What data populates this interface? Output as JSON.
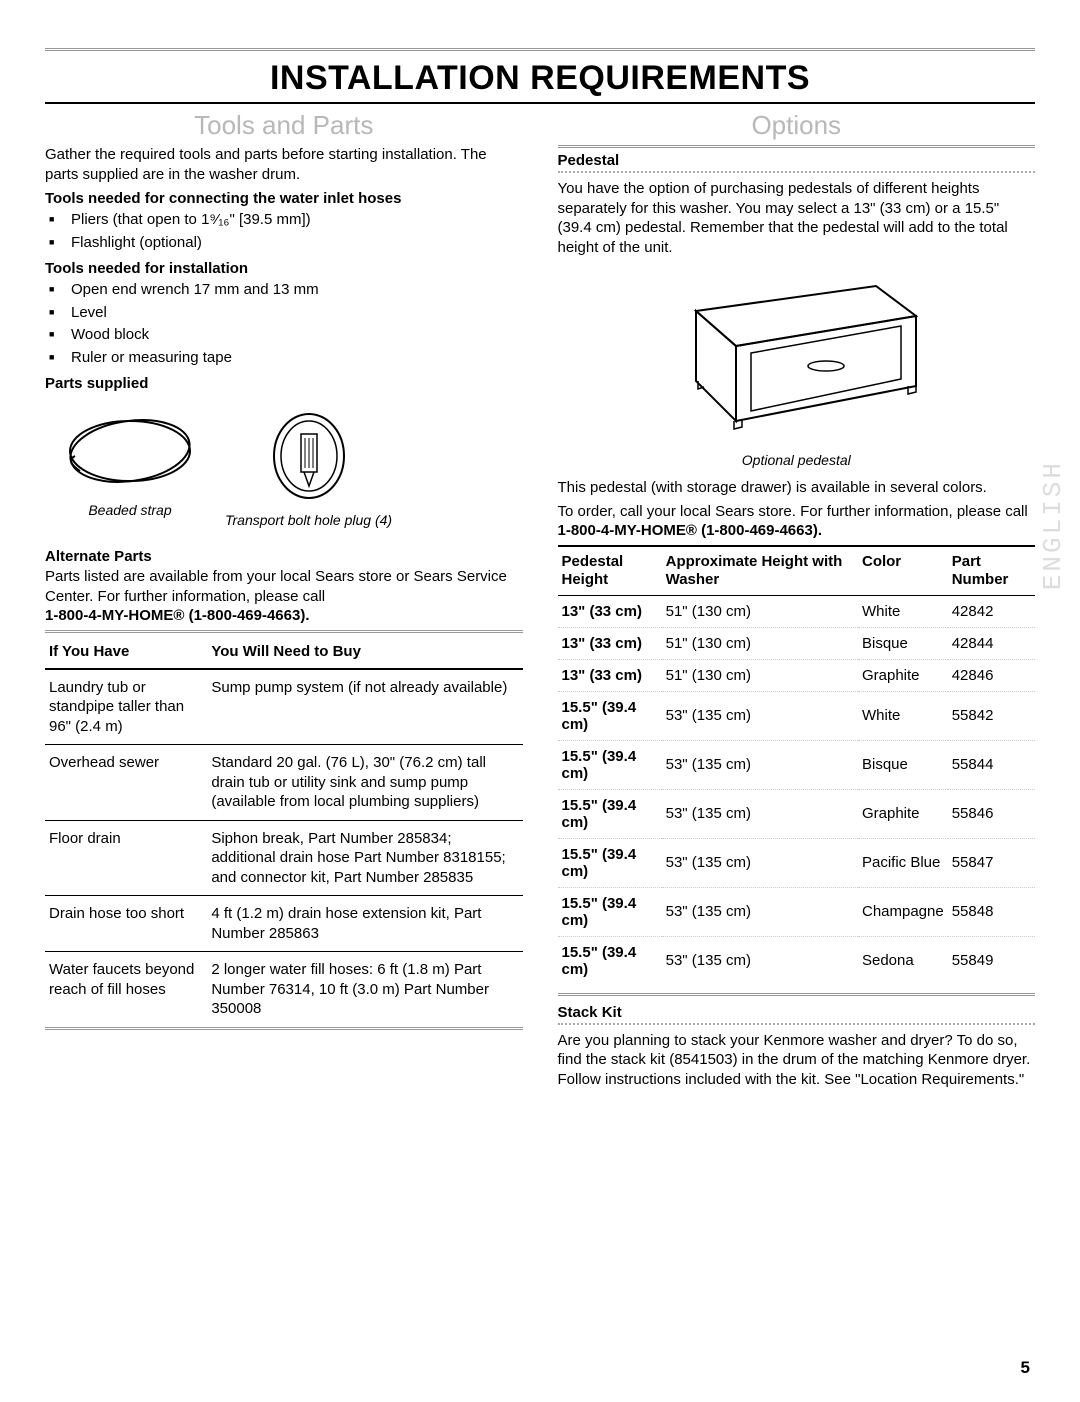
{
  "page_number": "5",
  "side_label": "ENGLISH",
  "main_title": "INSTALLATION REQUIREMENTS",
  "left": {
    "section_title": "Tools and Parts",
    "intro": "Gather the required tools and parts before starting installation. The parts supplied are in the washer drum.",
    "tools_hoses_h": "Tools needed for connecting the water inlet hoses",
    "tools_hoses": [
      "Pliers (that open to 1⁹⁄₁₆\" [39.5 mm])",
      "Flashlight (optional)"
    ],
    "tools_install_h": "Tools needed for installation",
    "tools_install": [
      "Open end wrench 17 mm and 13 mm",
      "Level",
      "Wood block",
      "Ruler or measuring tape"
    ],
    "parts_supplied_h": "Parts supplied",
    "fig1_caption": "Beaded strap",
    "fig2_caption": "Transport bolt hole plug (4)",
    "alt_parts_h": "Alternate Parts",
    "alt_parts_intro": "Parts listed are available from your local Sears store or Sears Service Center. For further information, please call",
    "alt_parts_phone": "1-800-4-MY-HOME® (1-800-469-4663).",
    "alt_th1": "If You Have",
    "alt_th2": "You Will Need to Buy",
    "alt_rows": [
      {
        "a": "Laundry tub or standpipe taller than 96\" (2.4 m)",
        "b": "Sump pump system (if not already available)"
      },
      {
        "a": "Overhead sewer",
        "b": "Standard 20 gal. (76 L), 30\" (76.2 cm) tall drain tub or utility sink and sump pump (available from local plumbing suppliers)"
      },
      {
        "a": "Floor drain",
        "b": "Siphon break, Part Number 285834; additional drain hose Part Number 8318155; and connector kit, Part Number 285835"
      },
      {
        "a": "Drain hose too short",
        "b": "4 ft (1.2 m) drain hose extension kit, Part Number 285863"
      },
      {
        "a": "Water faucets beyond reach of fill hoses",
        "b": "2 longer water fill hoses: 6 ft (1.8 m) Part Number 76314, 10 ft (3.0 m) Part Number 350008"
      }
    ]
  },
  "right": {
    "section_title": "Options",
    "pedestal_h": "Pedestal",
    "pedestal_intro": "You have the option of purchasing pedestals of different heights separately for this washer. You may select a 13\" (33 cm) or a 15.5\" (39.4 cm) pedestal. Remember that the pedestal will add to the total height of the unit.",
    "ped_caption": "Optional pedestal",
    "ped_avail": "This pedestal (with storage drawer) is available in several colors.",
    "ped_order": "To order, call your local Sears store. For further information, please call ",
    "ped_phone": "1-800-4-MY-HOME® (1-800-469-4663).",
    "ped_th1": "Pedestal Height",
    "ped_th2": "Approximate Height with Washer",
    "ped_th3": "Color",
    "ped_th4": "Part Number",
    "ped_rows": [
      {
        "h": "13\" (33 cm)",
        "ah": "51\" (130 cm)",
        "c": "White",
        "p": "42842"
      },
      {
        "h": "13\" (33 cm)",
        "ah": "51\" (130 cm)",
        "c": "Bisque",
        "p": "42844"
      },
      {
        "h": "13\" (33 cm)",
        "ah": "51\" (130 cm)",
        "c": "Graphite",
        "p": "42846"
      },
      {
        "h": "15.5\" (39.4 cm)",
        "ah": "53\" (135 cm)",
        "c": "White",
        "p": "55842"
      },
      {
        "h": "15.5\" (39.4 cm)",
        "ah": "53\" (135 cm)",
        "c": "Bisque",
        "p": "55844"
      },
      {
        "h": "15.5\" (39.4 cm)",
        "ah": "53\" (135 cm)",
        "c": "Graphite",
        "p": "55846"
      },
      {
        "h": "15.5\" (39.4 cm)",
        "ah": "53\" (135 cm)",
        "c": "Pacific Blue",
        "p": "55847"
      },
      {
        "h": "15.5\" (39.4 cm)",
        "ah": "53\" (135 cm)",
        "c": "Champagne",
        "p": "55848"
      },
      {
        "h": "15.5\" (39.4 cm)",
        "ah": "53\" (135 cm)",
        "c": "Sedona",
        "p": "55849"
      }
    ],
    "stack_h": "Stack Kit",
    "stack_text": "Are you planning to stack your Kenmore washer and dryer? To do so, find the stack kit (8541503) in the drum of the matching Kenmore dryer. Follow instructions included with the kit. See \"Location Requirements.\""
  }
}
